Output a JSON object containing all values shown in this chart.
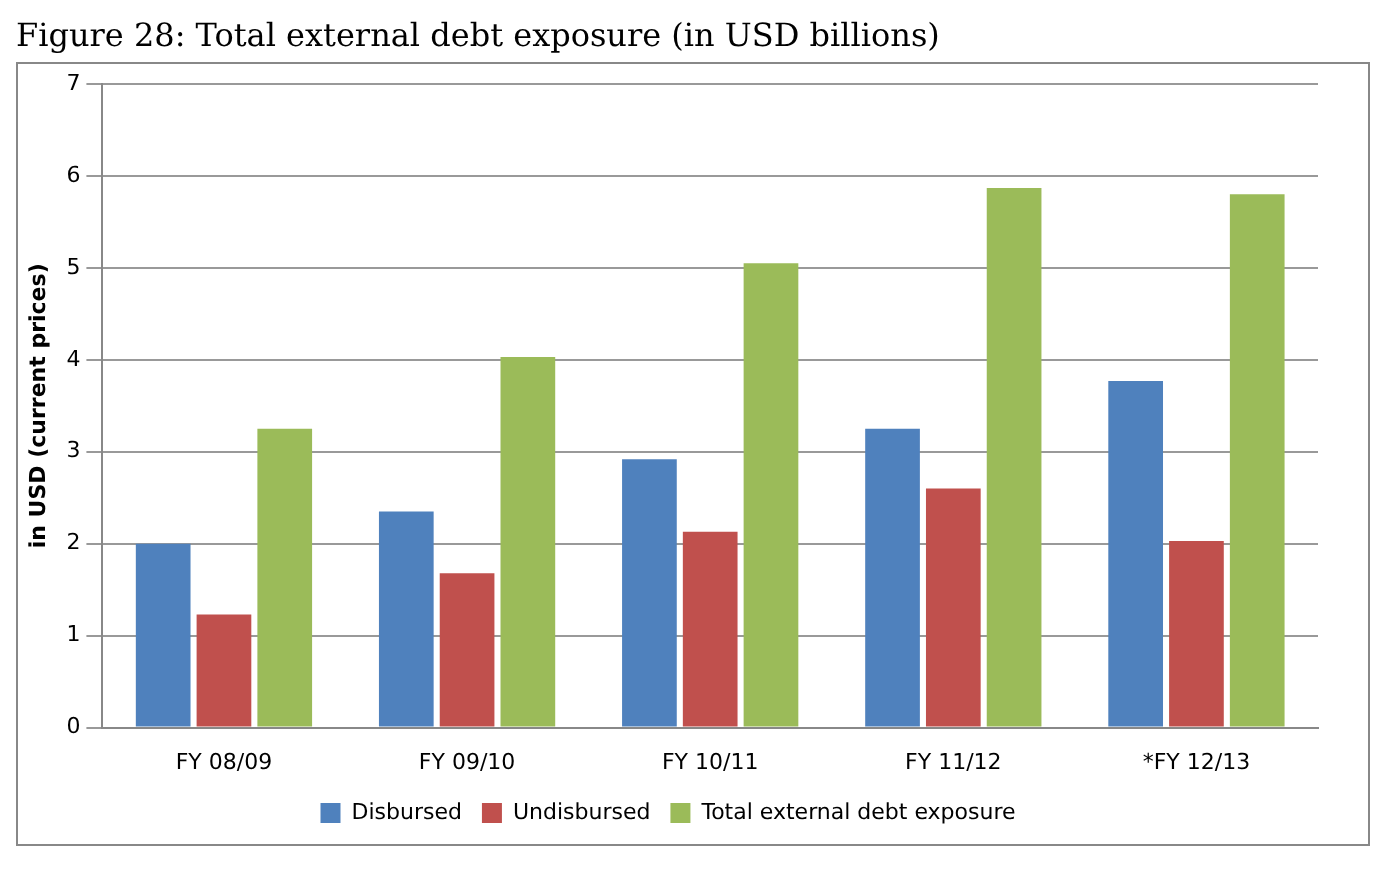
{
  "chart_data": {
    "type": "bar",
    "title": "Figure 28: Total external debt exposure (in USD billions)",
    "ylabel": "in USD (current prices)",
    "categories": [
      "FY 08/09",
      "FY 09/10",
      "FY 10/11",
      "FY 11/12",
      "*FY 12/13"
    ],
    "series": [
      {
        "name": "Disbursed",
        "color": "#4f81bd",
        "values": [
          2.0,
          2.35,
          2.92,
          3.25,
          3.77
        ]
      },
      {
        "name": "Undisbursed",
        "color": "#c0504d",
        "values": [
          1.23,
          1.68,
          2.13,
          2.6,
          2.03
        ]
      },
      {
        "name": "Total external debt exposure",
        "color": "#9bbb59",
        "values": [
          3.25,
          4.03,
          5.05,
          5.87,
          5.8
        ]
      }
    ],
    "ylim": [
      0,
      7
    ],
    "yticks": [
      0,
      1,
      2,
      3,
      4,
      5,
      6,
      7
    ],
    "grid": "y",
    "legend": "bottom"
  }
}
